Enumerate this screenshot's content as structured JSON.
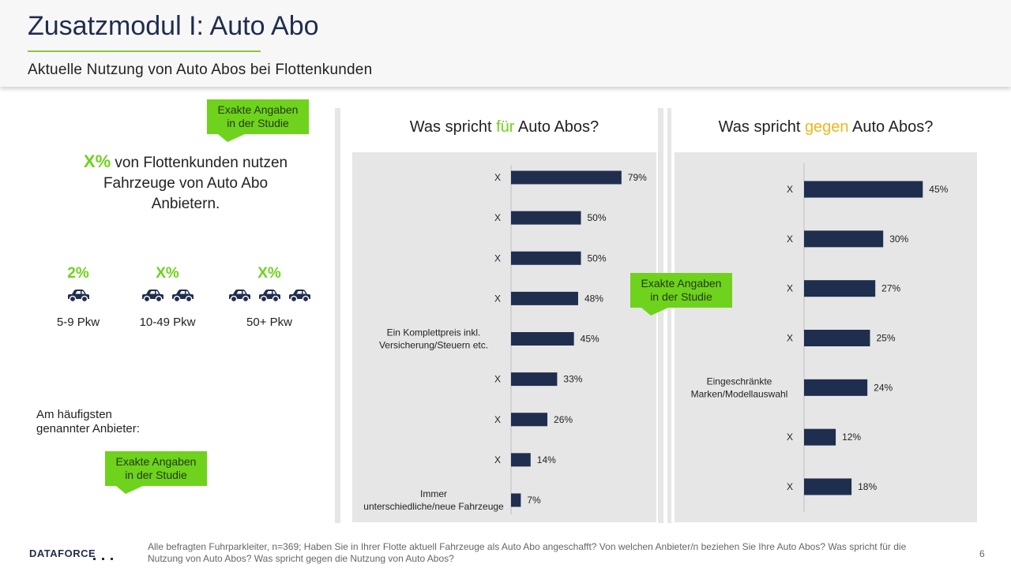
{
  "header": {
    "title": "Zusatzmodul I: Auto Abo",
    "subtitle": "Aktuelle Nutzung  von Auto Abos bei Flottenkunden"
  },
  "callout_text": "Exakte Angaben in der Studie",
  "left": {
    "usage_pct": "X%",
    "usage_text": "von Flottenkunden nutzen Fahrzeuge von Auto Abo Anbietern.",
    "fleet_sizes": [
      {
        "pct": "2%",
        "label": "5-9 Pkw",
        "cars": 1
      },
      {
        "pct": "X%",
        "label": "10-49 Pkw",
        "cars": 2
      },
      {
        "pct": "X%",
        "label": "50+ Pkw",
        "cars": 3
      }
    ],
    "anbieter_label": "Am häufigsten genannter Anbieter:"
  },
  "colors": {
    "accent_green": "#6fd21c",
    "accent_orange": "#f0b61e",
    "bar": "#1f2d4e",
    "panel_bg": "#e6e6e6"
  },
  "chart_data": [
    {
      "type": "bar",
      "orientation": "horizontal",
      "title": {
        "pre": "Was spricht ",
        "highlight": "für",
        "post": " Auto Abos?"
      },
      "categories": [
        "X",
        "X",
        "X",
        "X",
        "Ein Komplettpreis inkl. Versicherung/Steuern etc.",
        "X",
        "X",
        "X",
        "Immer unterschiedliche/neue Fahrzeuge"
      ],
      "values": [
        79,
        50,
        50,
        48,
        45,
        33,
        26,
        14,
        7
      ],
      "value_labels": [
        "79%",
        "50%",
        "50%",
        "48%",
        "45%",
        "33%",
        "26%",
        "14%",
        "7%"
      ],
      "unit": "%",
      "xlim": [
        0,
        100
      ]
    },
    {
      "type": "bar",
      "orientation": "horizontal",
      "title": {
        "pre": "Was spricht ",
        "highlight": "gegen",
        "post": " Auto Abos?"
      },
      "categories": [
        "X",
        "X",
        "X",
        "X",
        "Eingeschränkte Marken/Modellauswahl",
        "X",
        "X"
      ],
      "values": [
        45,
        30,
        27,
        25,
        24,
        12,
        18
      ],
      "value_labels": [
        "45%",
        "30%",
        "27%",
        "25%",
        "24%",
        "12%",
        "18%"
      ],
      "unit": "%",
      "xlim": [
        0,
        100
      ]
    }
  ],
  "footer": {
    "logo": "DATAFORCE",
    "note": "Alle befragten Fuhrparkleiter,  n=369; Haben  Sie in Ihrer Flotte aktuell Fahrzeuge  als Auto Abo angeschafft? Von welchen Anbieter/n beziehen Sie Ihre Auto Abos? Was spricht für die Nutzung von Auto Abos? Was spricht gegen die Nutzung von Auto Abos?",
    "page": "6"
  }
}
